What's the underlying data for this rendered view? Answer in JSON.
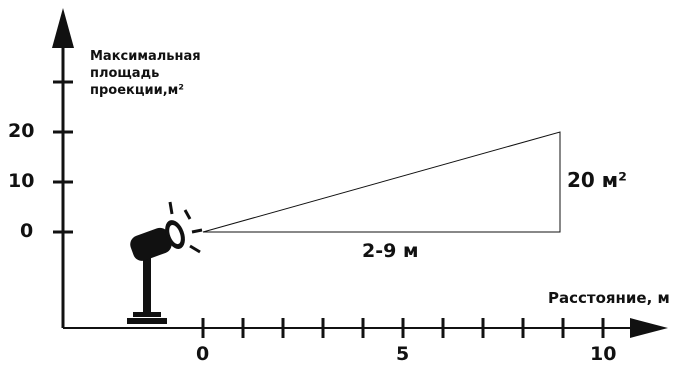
{
  "y_axis": {
    "label_lines": [
      "Максимальная",
      "площадь",
      "проекции,м²"
    ],
    "ticks": [
      "20",
      "10",
      "0"
    ]
  },
  "x_axis": {
    "label": "Расстояние, м",
    "ticks": [
      "0",
      "5",
      "10"
    ]
  },
  "annotations": {
    "area": "20 м²",
    "distance": "2-9 м"
  },
  "colors": {
    "ink": "#111111",
    "background": "#ffffff"
  },
  "icons": [
    "spotlight-icon"
  ]
}
